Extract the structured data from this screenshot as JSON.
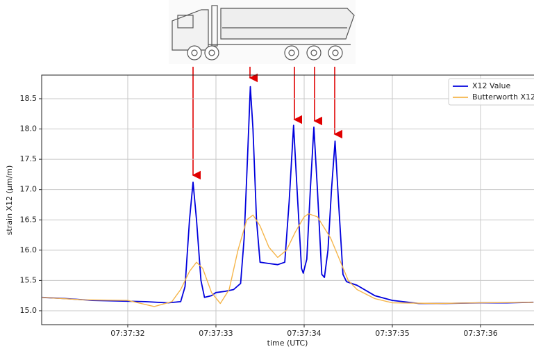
{
  "chart_data": {
    "type": "line",
    "xlabel": "time (UTC)",
    "ylabel": "strain X12 (µm/m)",
    "xlim": [
      27451.024,
      27456.606
    ],
    "ylim": [
      14.77,
      18.89
    ],
    "xticks": [
      {
        "value": 27452,
        "label": "07:37:32"
      },
      {
        "value": 27453,
        "label": "07:37:33"
      },
      {
        "value": 27454,
        "label": "07:37:34"
      },
      {
        "value": 27455,
        "label": "07:37:35"
      },
      {
        "value": 27456,
        "label": "07:37:36"
      }
    ],
    "yticks": [
      {
        "value": 15,
        "label": "15.0"
      },
      15.5,
      {
        "value": 16,
        "label": "16.0"
      },
      16.5,
      {
        "value": 17,
        "label": "17.0"
      },
      17.5,
      {
        "value": 18,
        "label": "18.0"
      },
      18.5
    ],
    "grid": true,
    "legend": "upper right",
    "series": [
      {
        "name": "X12 Value",
        "color": "#0000dd",
        "x": [
          27451.03,
          27451.3,
          27451.6,
          27451.9,
          27452.2,
          27452.45,
          27452.6,
          27452.65,
          27452.7,
          27452.74,
          27452.78,
          27452.83,
          27452.87,
          27452.95,
          27453.0,
          27453.1,
          27453.2,
          27453.28,
          27453.32,
          27453.36,
          27453.39,
          27453.42,
          27453.46,
          27453.5,
          27453.6,
          27453.7,
          27453.78,
          27453.83,
          27453.88,
          27453.92,
          27453.97,
          27453.99,
          27454.03,
          27454.07,
          27454.11,
          27454.15,
          27454.2,
          27454.23,
          27454.27,
          27454.31,
          27454.35,
          27454.39,
          27454.44,
          27454.48,
          27454.6,
          27454.8,
          27455.0,
          27455.3,
          27455.6,
          27456.0,
          27456.3,
          27456.6
        ],
        "values": [
          15.22,
          15.2,
          15.17,
          15.16,
          15.15,
          15.13,
          15.15,
          15.4,
          16.5,
          17.12,
          16.5,
          15.5,
          15.22,
          15.25,
          15.3,
          15.32,
          15.35,
          15.45,
          16.2,
          17.6,
          18.7,
          18.0,
          16.5,
          15.8,
          15.78,
          15.76,
          15.8,
          16.8,
          18.06,
          17.0,
          15.7,
          15.62,
          15.85,
          17.0,
          18.03,
          17.0,
          15.6,
          15.55,
          16.0,
          17.0,
          17.8,
          16.8,
          15.6,
          15.48,
          15.42,
          15.25,
          15.17,
          15.12,
          15.12,
          15.13,
          15.13,
          15.14
        ]
      },
      {
        "name": "Butterworth X12",
        "color": "#f5b54a",
        "x": [
          27451.03,
          27451.5,
          27452.0,
          27452.3,
          27452.5,
          27452.6,
          27452.7,
          27452.78,
          27452.85,
          27452.95,
          27453.05,
          27453.15,
          27453.25,
          27453.35,
          27453.42,
          27453.5,
          27453.6,
          27453.7,
          27453.8,
          27453.9,
          27454.0,
          27454.05,
          27454.15,
          27454.3,
          27454.4,
          27454.5,
          27454.6,
          27454.8,
          27455.0,
          27455.5,
          27456.0,
          27456.6
        ],
        "values": [
          15.22,
          15.18,
          15.17,
          15.07,
          15.15,
          15.35,
          15.65,
          15.8,
          15.7,
          15.3,
          15.12,
          15.35,
          16.0,
          16.5,
          16.58,
          16.4,
          16.05,
          15.88,
          16.0,
          16.3,
          16.55,
          16.6,
          16.55,
          16.2,
          15.85,
          15.5,
          15.35,
          15.2,
          15.13,
          15.12,
          15.13,
          15.14
        ]
      }
    ]
  }
}
